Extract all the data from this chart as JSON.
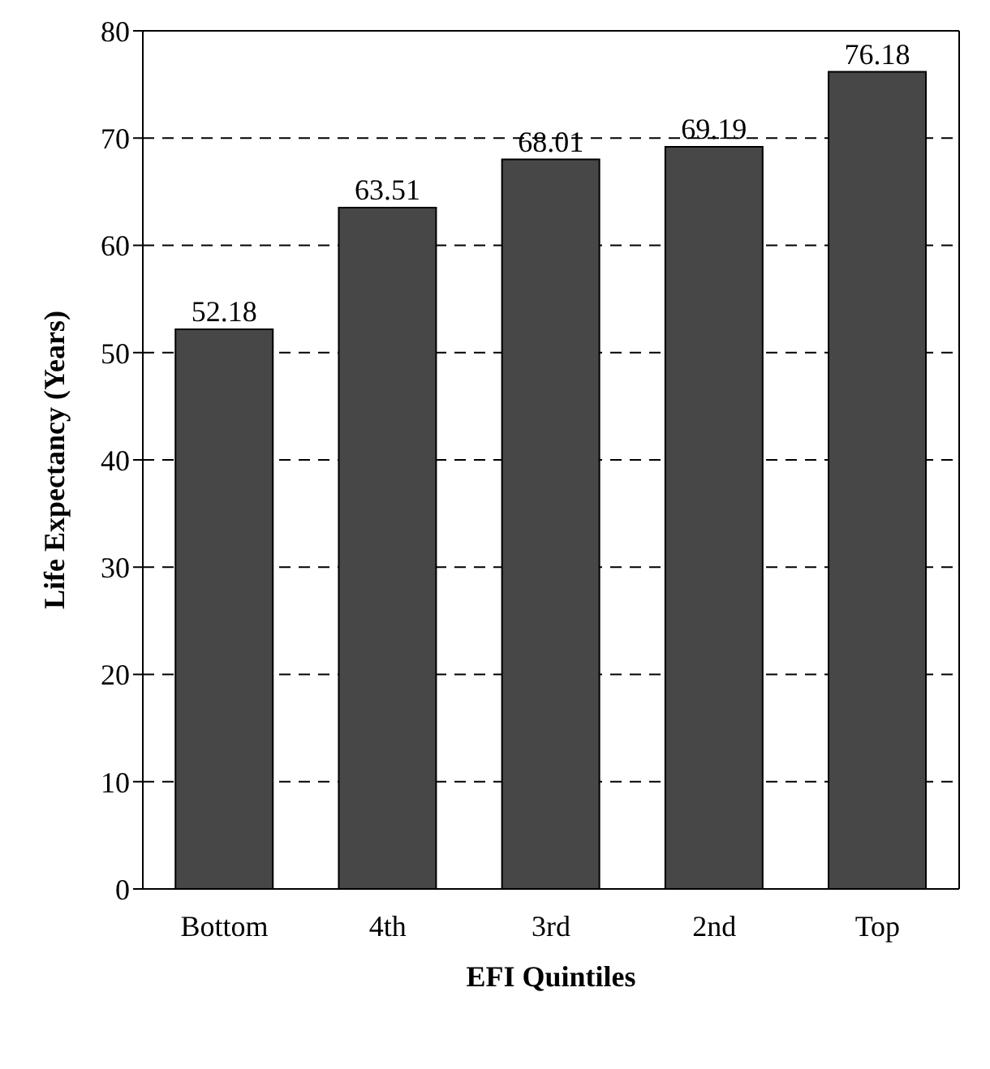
{
  "chart_data": {
    "type": "bar",
    "xlabel": "EFI Quintiles",
    "ylabel": "Life Expectancy (Years)",
    "categories": [
      "Bottom",
      "4th",
      "3rd",
      "2nd",
      "Top"
    ],
    "values": [
      52.18,
      63.51,
      68.01,
      69.19,
      76.18
    ],
    "color": "#474747",
    "ylim": [
      0,
      80
    ],
    "yticks": [
      0,
      10,
      20,
      30,
      40,
      50,
      60,
      70,
      80
    ],
    "grid": "y",
    "data_labels": true
  }
}
